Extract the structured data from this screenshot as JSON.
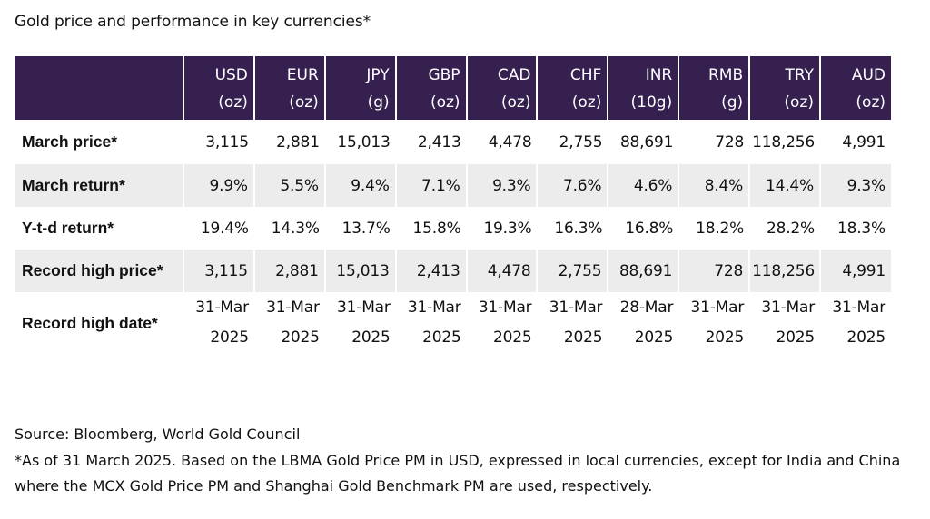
{
  "chart_data": {
    "type": "table",
    "title": "Gold price and performance in key currencies*",
    "columns": [
      {
        "currency": "USD",
        "unit": "(oz)"
      },
      {
        "currency": "EUR",
        "unit": "(oz)"
      },
      {
        "currency": "JPY",
        "unit": "(g)"
      },
      {
        "currency": "GBP",
        "unit": "(oz)"
      },
      {
        "currency": "CAD",
        "unit": "(oz)"
      },
      {
        "currency": "CHF",
        "unit": "(oz)"
      },
      {
        "currency": "INR",
        "unit": "(10g)"
      },
      {
        "currency": "RMB",
        "unit": "(g)"
      },
      {
        "currency": "TRY",
        "unit": "(oz)"
      },
      {
        "currency": "AUD",
        "unit": "(oz)"
      }
    ],
    "rows": [
      {
        "label": "March price*",
        "values": [
          "3,115",
          "2,881",
          "15,013",
          "2,413",
          "4,478",
          "2,755",
          "88,691",
          "728",
          "118,256",
          "4,991"
        ]
      },
      {
        "label": "March return*",
        "values": [
          "9.9%",
          "5.5%",
          "9.4%",
          "7.1%",
          "9.3%",
          "7.6%",
          "4.6%",
          "8.4%",
          "14.4%",
          "9.3%"
        ]
      },
      {
        "label": "Y-t-d return*",
        "values": [
          "19.4%",
          "14.3%",
          "13.7%",
          "15.8%",
          "19.3%",
          "16.3%",
          "16.8%",
          "18.2%",
          "28.2%",
          "18.3%"
        ]
      },
      {
        "label": "Record high price*",
        "values": [
          "3,115",
          "2,881",
          "15,013",
          "2,413",
          "4,478",
          "2,755",
          "88,691",
          "728",
          "118,256",
          "4,991"
        ]
      },
      {
        "label": "Record high date*",
        "values": [
          [
            "31-Mar",
            "2025"
          ],
          [
            "31-Mar",
            "2025"
          ],
          [
            "31-Mar",
            "2025"
          ],
          [
            "31-Mar",
            "2025"
          ],
          [
            "31-Mar",
            "2025"
          ],
          [
            "31-Mar",
            "2025"
          ],
          [
            "28-Mar",
            "2025"
          ],
          [
            "31-Mar",
            "2025"
          ],
          [
            "31-Mar",
            "2025"
          ],
          [
            "31-Mar",
            "2025"
          ]
        ]
      }
    ],
    "source": "Source: Bloomberg, World Gold Council",
    "footnote": "*As of 31 March 2025. Based on the LBMA Gold Price PM in USD, expressed in local currencies, except for India and China where the MCX Gold Price PM and Shanghai Gold Benchmark PM are used, respectively."
  },
  "colors": {
    "header_bg": "#35204f",
    "header_text": "#ffffff",
    "shade_bg": "#ececec"
  }
}
